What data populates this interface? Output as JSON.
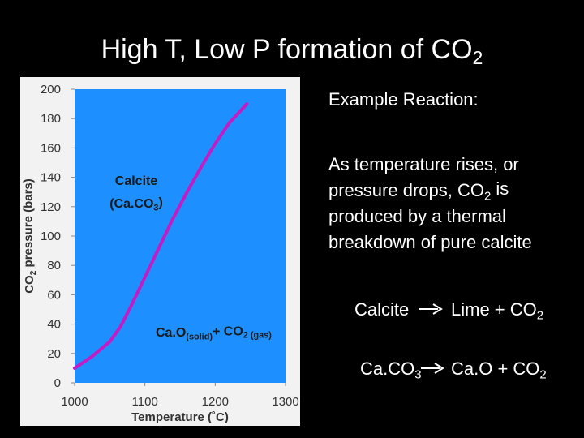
{
  "chart_data": {
    "type": "line",
    "title": [
      "High T, Low P formation of CO",
      {
        "sub": "2"
      }
    ],
    "x_label": [
      "Temperature (˚C)"
    ],
    "y_label": [
      "CO",
      {
        "sub": "2"
      },
      " pressure (bars)"
    ],
    "x": [
      1000,
      1025,
      1050,
      1065,
      1080,
      1100,
      1120,
      1140,
      1160,
      1180,
      1200,
      1220,
      1245
    ],
    "values": [
      10,
      18,
      28,
      38,
      52,
      72,
      92,
      112,
      130,
      147,
      163,
      177,
      190
    ],
    "color": "#c41cc4",
    "plot_background": "#1e8fff",
    "xlim": [
      1000,
      1300
    ],
    "xticks": [
      1000,
      1100,
      1200,
      1300
    ],
    "ylim": [
      0,
      200
    ],
    "yticks": [
      0,
      20,
      40,
      60,
      80,
      100,
      120,
      140,
      160,
      180,
      200
    ],
    "annotations": [
      [
        "Calcite"
      ],
      [
        "(Ca.CO",
        {
          "sub": "3"
        },
        ")"
      ],
      [
        "Ca.O",
        {
          "sub": "(solid)"
        },
        "+ CO",
        {
          "sub": "2 (gas)"
        }
      ]
    ]
  },
  "side_text": {
    "heading": [
      "Example Reaction:"
    ],
    "paragraph": [
      [
        "As temperature rises, or"
      ],
      [
        "pressure drops, CO",
        {
          "sub": "2"
        },
        " is"
      ],
      [
        "produced by a thermal"
      ],
      [
        "breakdown of pure calcite"
      ]
    ],
    "equation_1": {
      "left": [
        "Calcite"
      ],
      "right": [
        "Lime + CO",
        {
          "sub": "2"
        }
      ]
    },
    "equation_2": {
      "left": [
        "Ca.CO",
        {
          "sub": "3"
        }
      ],
      "right": [
        "Ca.O + CO",
        {
          "sub": "2"
        }
      ]
    }
  }
}
